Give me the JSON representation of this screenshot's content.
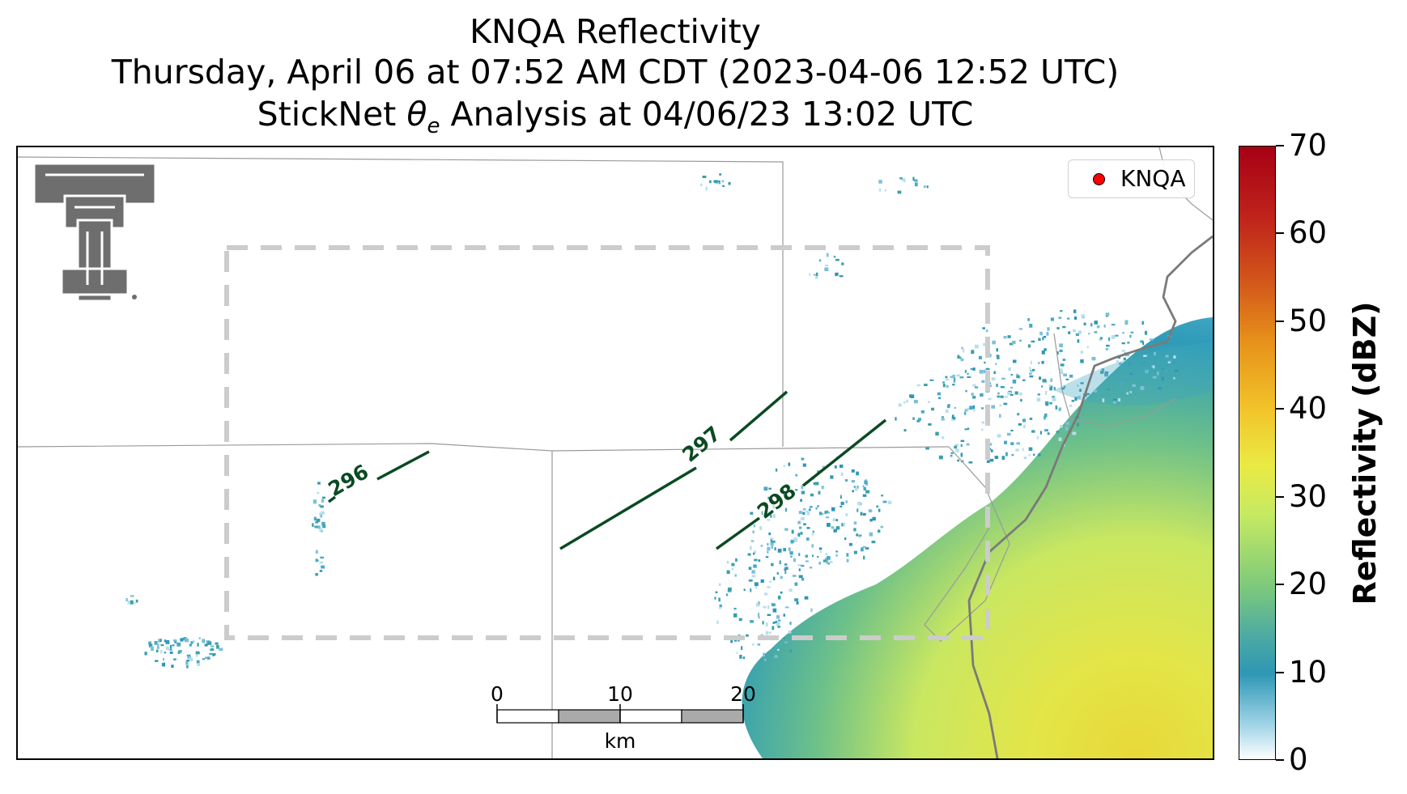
{
  "title": {
    "line1": "KNQA Reflectivity",
    "line2": "Thursday, April 06 at 07:52 AM CDT (2023-04-06 12:52 UTC)",
    "line3_prefix": "StickNet ",
    "line3_symbol": "θ",
    "line3_sub": "e",
    "line3_suffix": " Analysis at 04/06/23 13:02 UTC"
  },
  "legend": {
    "label": "KNQA",
    "marker_color": "#ff0000"
  },
  "contours": [
    {
      "label": "296",
      "color": "#0b4a22"
    },
    {
      "label": "297",
      "color": "#0b4a22"
    },
    {
      "label": "298",
      "color": "#0b4a22"
    }
  ],
  "scale_bar": {
    "ticks": [
      "0",
      "10",
      "20"
    ],
    "unit": "km"
  },
  "colorbar": {
    "label": "Reflectivity (dBZ)",
    "min": 0,
    "max": 70,
    "ticks": [
      "0",
      "10",
      "20",
      "30",
      "40",
      "50",
      "60",
      "70"
    ]
  },
  "logo": {
    "name": "Texas Tech Double T",
    "color": "#6e6e6e"
  },
  "analysis_box": {
    "color": "#cccccc",
    "style": "dashed"
  }
}
